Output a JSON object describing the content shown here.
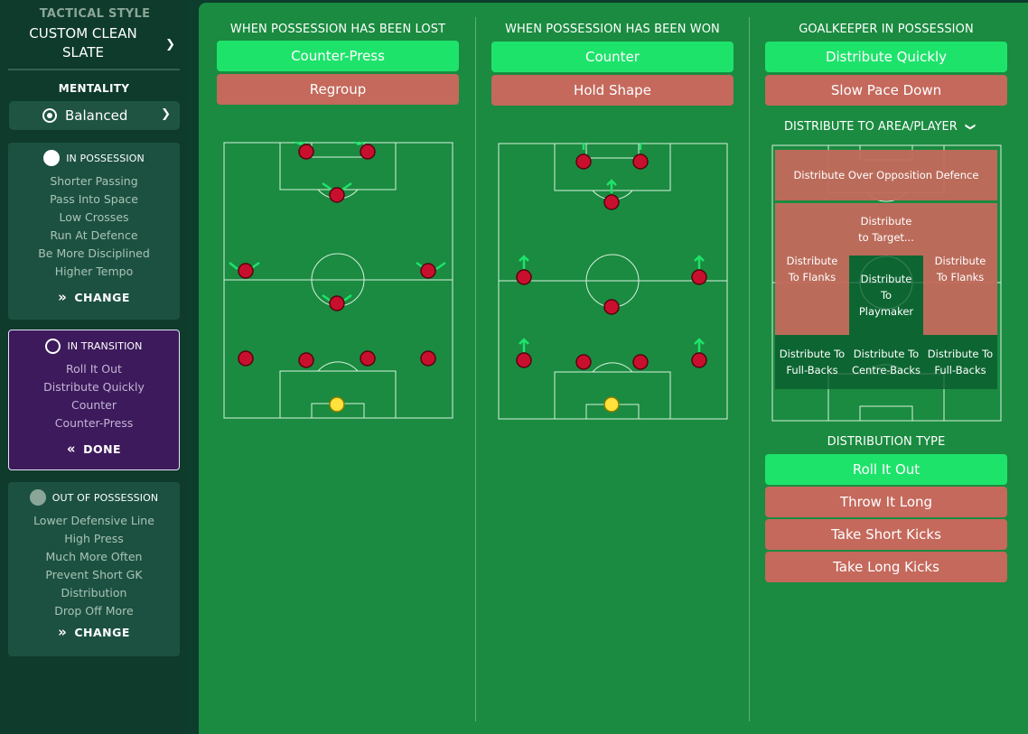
{
  "sidebar": {
    "tactical_style_label": "TACTICAL STYLE",
    "tactical_style_value": "CUSTOM CLEAN SLATE",
    "mentality_label": "MENTALITY",
    "mentality_value": "Balanced",
    "in_possession": {
      "title": "IN POSSESSION",
      "items": [
        "Shorter Passing",
        "Pass Into Space",
        "Low Crosses",
        "Run At Defence",
        "Be More Disciplined",
        "Higher Tempo"
      ],
      "button": "CHANGE"
    },
    "in_transition": {
      "title": "IN TRANSITION",
      "items": [
        "Roll It Out",
        "Distribute Quickly",
        "Counter",
        "Counter-Press"
      ],
      "button": "DONE"
    },
    "out_of_possession": {
      "title": "OUT OF POSSESSION",
      "items": [
        "Lower Defensive Line",
        "High Press",
        "Much More Often",
        "Prevent Short GK",
        "Distribution",
        "Drop Off More"
      ],
      "button": "CHANGE"
    }
  },
  "lost": {
    "title": "WHEN POSSESSION HAS BEEN LOST",
    "options": [
      {
        "label": "Counter-Press",
        "selected": true
      },
      {
        "label": "Regroup",
        "selected": false
      }
    ]
  },
  "won": {
    "title": "WHEN POSSESSION HAS BEEN WON",
    "options": [
      {
        "label": "Counter",
        "selected": true
      },
      {
        "label": "Hold Shape",
        "selected": false
      }
    ]
  },
  "gk": {
    "title": "GOALKEEPER IN POSSESSION",
    "options": [
      {
        "label": "Distribute Quickly",
        "selected": true
      },
      {
        "label": "Slow Pace Down",
        "selected": false
      }
    ],
    "distribute_title": "DISTRIBUTE TO AREA/PLAYER",
    "zones": {
      "over_defence": "Distribute Over Opposition Defence",
      "target": "Distribute to Target...",
      "flanks_left": "Distribute To Flanks",
      "flanks_right": "Distribute To Flanks",
      "playmaker": "Distribute To Playmaker",
      "fullbacks_left": "Distribute To Full-Backs",
      "centrebacks": "Distribute To Centre-Backs",
      "fullbacks_right": "Distribute To Full-Backs"
    },
    "distribution_type_title": "DISTRIBUTION TYPE",
    "distribution_types": [
      {
        "label": "Roll It Out",
        "selected": true
      },
      {
        "label": "Throw It Long",
        "selected": false
      },
      {
        "label": "Take Short Kicks",
        "selected": false
      },
      {
        "label": "Take Long Kicks",
        "selected": false
      }
    ]
  },
  "colors": {
    "selected": "#1ee36b",
    "unselected": "#c4695c",
    "player": "#c8102e",
    "goalkeeper": "#ffe23b",
    "arrow": "#1ee36b"
  }
}
